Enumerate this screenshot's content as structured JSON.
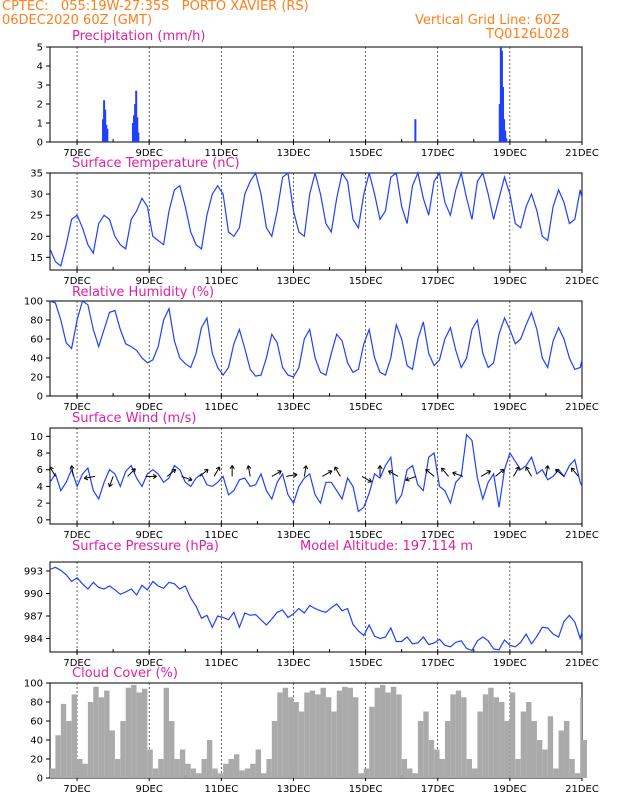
{
  "header": {
    "line1": "CPTEC:   055:19W-27:35S   PORTO XAVIER (RS)",
    "line2": "06DEC2020 60Z (GMT)",
    "right1": "Vertical Grid Line: 60Z",
    "right2": "TQ0126L028"
  },
  "colors": {
    "series": "#2040ff",
    "cloud": "#aaaaaa",
    "header": "#ff7f1a",
    "title": "#e020a0",
    "wind_arrow": "#000000"
  },
  "x_ticks": [
    "7DEC",
    "9DEC",
    "11DEC",
    "13DEC",
    "15DEC",
    "17DEC",
    "19DEC",
    "21DEC"
  ],
  "chart_data": [
    {
      "type": "bar",
      "title": "Precipitation (mm/h)",
      "ylim": [
        0,
        5
      ],
      "yticks": [
        0,
        1,
        2,
        3,
        4,
        5
      ],
      "xrange_day": [
        6.25,
        21
      ],
      "points": [
        [
          7.72,
          1.2
        ],
        [
          7.75,
          2.2
        ],
        [
          7.78,
          1.7
        ],
        [
          7.81,
          0.9
        ],
        [
          7.84,
          0.7
        ],
        [
          8.55,
          1.0
        ],
        [
          8.58,
          1.4
        ],
        [
          8.61,
          2.0
        ],
        [
          8.64,
          2.7
        ],
        [
          8.67,
          1.3
        ],
        [
          8.7,
          0.5
        ],
        [
          16.38,
          1.2
        ],
        [
          18.72,
          2.0
        ],
        [
          18.75,
          5.0
        ],
        [
          18.78,
          4.8
        ],
        [
          18.81,
          2.9
        ],
        [
          18.84,
          1.2
        ],
        [
          18.87,
          0.6
        ],
        [
          18.9,
          0.2
        ]
      ]
    },
    {
      "type": "line",
      "title": "Surface Temperature (nC)",
      "ylim": [
        12,
        35
      ],
      "yticks": [
        15,
        20,
        25,
        30,
        35
      ],
      "xrange_day": [
        6.25,
        21
      ],
      "x": [
        6.25,
        6.4,
        6.55,
        6.7,
        6.85,
        7.0,
        7.15,
        7.3,
        7.45,
        7.6,
        7.75,
        7.9,
        8.05,
        8.2,
        8.35,
        8.5,
        8.65,
        8.8,
        8.95,
        9.1,
        9.25,
        9.4,
        9.55,
        9.7,
        9.85,
        10.0,
        10.15,
        10.3,
        10.45,
        10.6,
        10.75,
        10.9,
        11.05,
        11.2,
        11.35,
        11.5,
        11.65,
        11.8,
        11.95,
        12.1,
        12.25,
        12.4,
        12.55,
        12.7,
        12.85,
        13.0,
        13.15,
        13.3,
        13.45,
        13.6,
        13.75,
        13.9,
        14.05,
        14.2,
        14.35,
        14.5,
        14.65,
        14.8,
        14.95,
        15.1,
        15.25,
        15.4,
        15.55,
        15.7,
        15.85,
        16.0,
        16.15,
        16.3,
        16.45,
        16.6,
        16.75,
        16.9,
        17.05,
        17.2,
        17.35,
        17.5,
        17.65,
        17.8,
        17.95,
        18.1,
        18.25,
        18.4,
        18.55,
        18.7,
        18.85,
        19.0,
        19.15,
        19.3,
        19.45,
        19.6,
        19.75,
        19.9,
        20.05,
        20.2,
        20.35,
        20.5,
        20.65,
        20.8,
        20.95,
        21.0
      ],
      "y": [
        17,
        14,
        13,
        18,
        24,
        25,
        22,
        18,
        16,
        23,
        25,
        24,
        20,
        18,
        17,
        24,
        26,
        29,
        27,
        20,
        19,
        18,
        26,
        31,
        32,
        27,
        21,
        18,
        17,
        25,
        30,
        32,
        30,
        21,
        20,
        22,
        30,
        33,
        35,
        30,
        22,
        20,
        26,
        34,
        35,
        26,
        21,
        20,
        30,
        35,
        30,
        23,
        21,
        29,
        35,
        33,
        24,
        22,
        30,
        35,
        30,
        24,
        26,
        34,
        35,
        27,
        23,
        32,
        35,
        29,
        25,
        33,
        35,
        28,
        25,
        31,
        35,
        29,
        24,
        33,
        35,
        30,
        24,
        29,
        34,
        30,
        23,
        22,
        27,
        30,
        26,
        20,
        19,
        27,
        31,
        28,
        23,
        24,
        31,
        29
      ]
    },
    {
      "type": "line",
      "title": "Relative Humidity (%)",
      "ylim": [
        0,
        100
      ],
      "yticks": [
        0,
        20,
        40,
        60,
        80,
        100
      ],
      "xrange_day": [
        6.25,
        21
      ],
      "x": [
        6.25,
        6.4,
        6.55,
        6.7,
        6.85,
        7.0,
        7.15,
        7.3,
        7.45,
        7.6,
        7.75,
        7.9,
        8.05,
        8.2,
        8.35,
        8.5,
        8.65,
        8.8,
        8.95,
        9.1,
        9.25,
        9.4,
        9.55,
        9.7,
        9.85,
        10.0,
        10.15,
        10.3,
        10.45,
        10.6,
        10.75,
        10.9,
        11.05,
        11.2,
        11.35,
        11.5,
        11.65,
        11.8,
        11.95,
        12.1,
        12.25,
        12.4,
        12.55,
        12.7,
        12.85,
        13.0,
        13.15,
        13.3,
        13.45,
        13.6,
        13.75,
        13.9,
        14.05,
        14.2,
        14.35,
        14.5,
        14.65,
        14.8,
        14.95,
        15.1,
        15.25,
        15.4,
        15.55,
        15.7,
        15.85,
        16.0,
        16.15,
        16.3,
        16.45,
        16.6,
        16.75,
        16.9,
        17.05,
        17.2,
        17.35,
        17.5,
        17.65,
        17.8,
        17.95,
        18.1,
        18.25,
        18.4,
        18.55,
        18.7,
        18.85,
        19.0,
        19.15,
        19.3,
        19.45,
        19.6,
        19.75,
        19.9,
        20.05,
        20.2,
        20.35,
        20.5,
        20.65,
        20.8,
        20.95,
        21.0
      ],
      "y": [
        100,
        98,
        80,
        56,
        50,
        80,
        100,
        96,
        70,
        52,
        70,
        88,
        90,
        70,
        55,
        52,
        48,
        40,
        35,
        38,
        52,
        80,
        92,
        58,
        40,
        34,
        30,
        45,
        72,
        82,
        45,
        30,
        22,
        30,
        55,
        70,
        50,
        28,
        21,
        22,
        40,
        65,
        56,
        30,
        22,
        20,
        30,
        60,
        70,
        40,
        25,
        22,
        45,
        65,
        58,
        35,
        25,
        28,
        55,
        70,
        40,
        25,
        22,
        40,
        75,
        60,
        32,
        28,
        60,
        78,
        45,
        32,
        38,
        60,
        72,
        48,
        30,
        40,
        70,
        80,
        45,
        30,
        35,
        65,
        82,
        70,
        55,
        60,
        75,
        88,
        70,
        40,
        30,
        58,
        72,
        60,
        40,
        28,
        30,
        38
      ]
    },
    {
      "type": "line",
      "title": "Surface Wind (m/s)",
      "ylim": [
        -0.5,
        11
      ],
      "yticks": [
        0,
        2,
        4,
        6,
        8,
        10
      ],
      "xrange_day": [
        6.25,
        21
      ],
      "x": [
        6.25,
        6.4,
        6.55,
        6.7,
        6.85,
        7.0,
        7.15,
        7.3,
        7.45,
        7.6,
        7.75,
        7.9,
        8.05,
        8.2,
        8.35,
        8.5,
        8.65,
        8.8,
        8.95,
        9.1,
        9.25,
        9.4,
        9.55,
        9.7,
        9.85,
        10.0,
        10.15,
        10.3,
        10.45,
        10.6,
        10.75,
        10.9,
        11.05,
        11.2,
        11.35,
        11.5,
        11.65,
        11.8,
        11.95,
        12.1,
        12.25,
        12.4,
        12.55,
        12.7,
        12.85,
        13.0,
        13.15,
        13.3,
        13.45,
        13.6,
        13.75,
        13.9,
        14.05,
        14.2,
        14.35,
        14.5,
        14.65,
        14.8,
        14.95,
        15.1,
        15.25,
        15.4,
        15.55,
        15.7,
        15.85,
        16.0,
        16.15,
        16.3,
        16.45,
        16.6,
        16.75,
        16.9,
        17.05,
        17.2,
        17.35,
        17.5,
        17.65,
        17.8,
        17.95,
        18.1,
        18.25,
        18.4,
        18.55,
        18.7,
        18.85,
        19.0,
        19.15,
        19.3,
        19.45,
        19.6,
        19.75,
        19.9,
        20.05,
        20.2,
        20.35,
        20.5,
        20.65,
        20.8,
        20.95,
        21.0
      ],
      "y": [
        4.5,
        5.5,
        3.5,
        4.5,
        6,
        4,
        5.5,
        6.2,
        3.5,
        2.5,
        4.5,
        6,
        5.5,
        4,
        5.8,
        6.5,
        5,
        4,
        5.5,
        6,
        5.5,
        4.5,
        5,
        6.5,
        6,
        4.5,
        4,
        5,
        5.5,
        4.2,
        4,
        4.5,
        5.2,
        3,
        3.5,
        4.8,
        5,
        4,
        4.2,
        5.5,
        3.5,
        2.5,
        4.5,
        5.5,
        3,
        2,
        4,
        5,
        5.5,
        3,
        2,
        4.5,
        4.5,
        3.5,
        2.5,
        5,
        4,
        1,
        1.5,
        3.2,
        5.5,
        5,
        6.5,
        7.5,
        2,
        3,
        6,
        6.5,
        4.2,
        3.5,
        7.5,
        8,
        4,
        3.5,
        2,
        4.5,
        5.2,
        10.2,
        9.5,
        5,
        2.5,
        4.5,
        5.5,
        1.5,
        6,
        8,
        7,
        6,
        6.5,
        7.5,
        5.5,
        6,
        4.8,
        5.2,
        6,
        5.2,
        6.5,
        7.2,
        4.5,
        4
      ]
    },
    {
      "type": "wind_vectors",
      "points": [
        [
          6.4,
          -120
        ],
        [
          6.9,
          -100
        ],
        [
          7.5,
          170
        ],
        [
          8.0,
          110
        ],
        [
          8.4,
          -45
        ],
        [
          8.9,
          0
        ],
        [
          9.5,
          -40
        ],
        [
          9.9,
          20
        ],
        [
          10.4,
          -40
        ],
        [
          10.8,
          -60
        ],
        [
          11.3,
          -90
        ],
        [
          11.8,
          -100
        ],
        [
          12.4,
          -30
        ],
        [
          12.8,
          -10
        ],
        [
          13.3,
          -80
        ],
        [
          13.8,
          -30
        ],
        [
          14.3,
          -120
        ],
        [
          14.9,
          30
        ],
        [
          15.4,
          -90
        ],
        [
          15.9,
          -150
        ],
        [
          16.4,
          160
        ],
        [
          16.9,
          -140
        ],
        [
          17.3,
          -130
        ],
        [
          17.7,
          -160
        ],
        [
          18.2,
          -30
        ],
        [
          18.6,
          -40
        ],
        [
          19.1,
          -60
        ],
        [
          19.6,
          -120
        ],
        [
          20.0,
          -80
        ],
        [
          20.5,
          -140
        ],
        [
          20.9,
          -130
        ]
      ]
    },
    {
      "type": "line",
      "title": "Surface Pressure (hPa)",
      "annotation": "Model Altitude: 197.114 m",
      "ylim": [
        982.2,
        994.2
      ],
      "yticks": [
        984,
        987,
        990,
        993
      ],
      "xrange_day": [
        6.25,
        21
      ],
      "x": [
        6.25,
        6.4,
        6.55,
        6.7,
        6.85,
        7.0,
        7.15,
        7.3,
        7.45,
        7.6,
        7.75,
        7.9,
        8.05,
        8.2,
        8.35,
        8.5,
        8.65,
        8.8,
        8.95,
        9.1,
        9.25,
        9.4,
        9.55,
        9.7,
        9.85,
        10.0,
        10.15,
        10.3,
        10.45,
        10.6,
        10.75,
        10.9,
        11.05,
        11.2,
        11.35,
        11.5,
        11.65,
        11.8,
        11.95,
        12.1,
        12.25,
        12.4,
        12.55,
        12.7,
        12.85,
        13.0,
        13.15,
        13.3,
        13.45,
        13.6,
        13.75,
        13.9,
        14.05,
        14.2,
        14.35,
        14.5,
        14.65,
        14.8,
        14.95,
        15.1,
        15.25,
        15.4,
        15.55,
        15.7,
        15.85,
        16.0,
        16.15,
        16.3,
        16.45,
        16.6,
        16.75,
        16.9,
        17.05,
        17.2,
        17.35,
        17.5,
        17.65,
        17.8,
        17.95,
        18.1,
        18.25,
        18.4,
        18.55,
        18.7,
        18.85,
        19.0,
        19.15,
        19.3,
        19.45,
        19.6,
        19.75,
        19.9,
        20.05,
        20.2,
        20.35,
        20.5,
        20.65,
        20.8,
        20.95,
        21.0
      ],
      "y": [
        993.2,
        993.5,
        993.1,
        992.5,
        991.6,
        992.1,
        991.3,
        990.6,
        991.5,
        990.8,
        990.6,
        991.0,
        990.5,
        989.9,
        990.2,
        990.6,
        989.8,
        991.1,
        990.5,
        991.6,
        991.0,
        990.7,
        991.5,
        991.3,
        990.6,
        991.0,
        989.4,
        988.3,
        986.7,
        987.1,
        985.5,
        987.0,
        986.8,
        986.5,
        987.5,
        985.5,
        987.4,
        987.1,
        987.2,
        986.5,
        985.8,
        986.6,
        987.5,
        987.8,
        986.8,
        987.3,
        988.0,
        987.4,
        988.4,
        988.0,
        987.7,
        987.5,
        988.1,
        988.6,
        987.7,
        988.0,
        985.9,
        985.0,
        984.4,
        985.8,
        984.3,
        984.0,
        984.2,
        985.4,
        983.6,
        983.6,
        984.2,
        983.3,
        983.4,
        984.2,
        983.2,
        983.4,
        983.9,
        983.1,
        982.9,
        983.5,
        983.7,
        982.7,
        982.4,
        983.7,
        984.2,
        983.7,
        982.6,
        982.5,
        983.8,
        983.1,
        982.9,
        983.5,
        984.6,
        983.3,
        984.3,
        985.5,
        985.4,
        984.6,
        984.2,
        986.3,
        987.1,
        986.2,
        984.0,
        984.9
      ]
    },
    {
      "type": "area",
      "title": "Cloud Cover (%)",
      "ylim": [
        0,
        100
      ],
      "yticks": [
        0,
        20,
        40,
        60,
        80,
        100
      ],
      "xrange_day": [
        6.25,
        21
      ],
      "x": [
        6.25,
        6.4,
        6.55,
        6.7,
        6.85,
        7.0,
        7.15,
        7.3,
        7.45,
        7.6,
        7.75,
        7.9,
        8.05,
        8.2,
        8.35,
        8.5,
        8.65,
        8.8,
        8.95,
        9.1,
        9.25,
        9.4,
        9.55,
        9.7,
        9.85,
        10.0,
        10.15,
        10.3,
        10.45,
        10.6,
        10.75,
        10.9,
        11.05,
        11.2,
        11.35,
        11.5,
        11.65,
        11.8,
        11.95,
        12.1,
        12.25,
        12.4,
        12.55,
        12.7,
        12.85,
        13.0,
        13.15,
        13.3,
        13.45,
        13.6,
        13.75,
        13.9,
        14.05,
        14.2,
        14.35,
        14.5,
        14.65,
        14.8,
        14.95,
        15.1,
        15.25,
        15.4,
        15.55,
        15.7,
        15.85,
        16.0,
        16.15,
        16.3,
        16.45,
        16.6,
        16.75,
        16.9,
        17.05,
        17.2,
        17.35,
        17.5,
        17.65,
        17.8,
        17.95,
        18.1,
        18.25,
        18.4,
        18.55,
        18.7,
        18.85,
        19.0,
        19.15,
        19.3,
        19.45,
        19.6,
        19.75,
        19.9,
        20.05,
        20.2,
        20.35,
        20.5,
        20.65,
        20.8,
        20.95,
        21.0
      ],
      "y": [
        10,
        45,
        78,
        60,
        88,
        20,
        15,
        80,
        96,
        85,
        92,
        50,
        20,
        60,
        95,
        98,
        90,
        94,
        30,
        10,
        20,
        95,
        60,
        20,
        30,
        15,
        10,
        5,
        20,
        40,
        10,
        5,
        15,
        20,
        25,
        8,
        10,
        15,
        30,
        5,
        20,
        60,
        90,
        95,
        85,
        80,
        70,
        90,
        92,
        88,
        95,
        85,
        70,
        92,
        96,
        95,
        85,
        5,
        10,
        75,
        95,
        98,
        90,
        96,
        88,
        20,
        10,
        5,
        60,
        70,
        40,
        30,
        20,
        60,
        88,
        92,
        85,
        20,
        10,
        70,
        88,
        95,
        85,
        80,
        60,
        90,
        20,
        70,
        80,
        60,
        40,
        30,
        65,
        10,
        50,
        60,
        20,
        5,
        85,
        40
      ]
    }
  ]
}
